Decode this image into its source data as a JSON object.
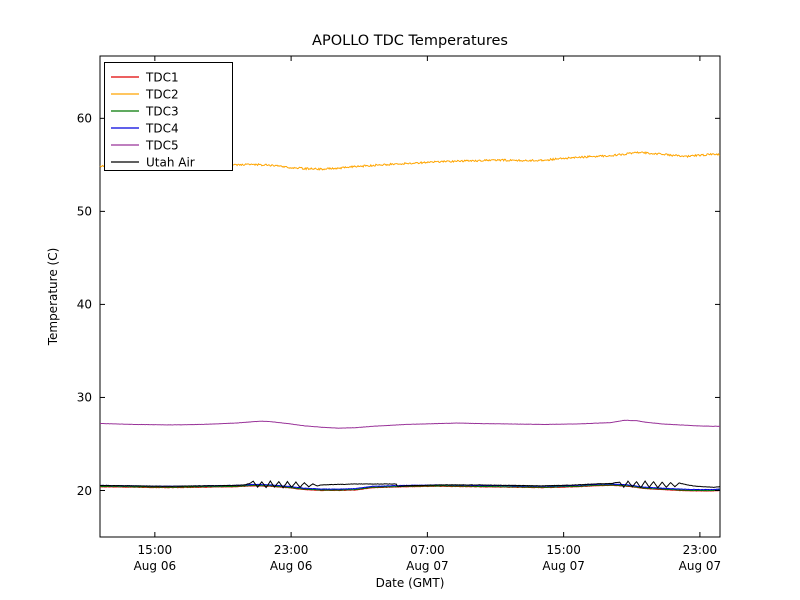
{
  "chart_data": {
    "type": "line",
    "title": "APOLLO TDC Temperatures",
    "xlabel": "Date (GMT)",
    "ylabel": "Temperature (C)",
    "ylim": [
      15,
      66.7
    ],
    "xlim_hours": [
      0,
      36.4
    ],
    "grid": false,
    "legend_position": "upper-left",
    "yticks": [
      20,
      30,
      40,
      50,
      60
    ],
    "xticks": [
      {
        "h": 3.22,
        "time": "15:00",
        "date": "Aug 06"
      },
      {
        "h": 11.22,
        "time": "23:00",
        "date": "Aug 06"
      },
      {
        "h": 19.22,
        "time": "07:00",
        "date": "Aug 07"
      },
      {
        "h": 27.22,
        "time": "15:00",
        "date": "Aug 07"
      },
      {
        "h": 35.22,
        "time": "23:00",
        "date": "Aug 07"
      }
    ],
    "series": [
      {
        "name": "TDC1",
        "color": "#e10000",
        "noise": 0.02,
        "points": [
          [
            0,
            20.4
          ],
          [
            2,
            20.35
          ],
          [
            4,
            20.3
          ],
          [
            6,
            20.35
          ],
          [
            8,
            20.4
          ],
          [
            9,
            20.5
          ],
          [
            10,
            20.45
          ],
          [
            11,
            20.3
          ],
          [
            12,
            20.1
          ],
          [
            13,
            20.0
          ],
          [
            14,
            20.0
          ],
          [
            15,
            20.05
          ],
          [
            16,
            20.3
          ],
          [
            18,
            20.4
          ],
          [
            20,
            20.45
          ],
          [
            22,
            20.4
          ],
          [
            24,
            20.35
          ],
          [
            26,
            20.3
          ],
          [
            28,
            20.4
          ],
          [
            29,
            20.5
          ],
          [
            30,
            20.55
          ],
          [
            31,
            20.45
          ],
          [
            32,
            20.2
          ],
          [
            33,
            20.1
          ],
          [
            34,
            20.0
          ],
          [
            35,
            19.95
          ],
          [
            36,
            19.95
          ],
          [
            36.4,
            20.0
          ]
        ]
      },
      {
        "name": "TDC2",
        "color": "#ffa500",
        "noise": 0.1,
        "points": [
          [
            0,
            54.9
          ],
          [
            1,
            54.85
          ],
          [
            2,
            54.8
          ],
          [
            3,
            54.75
          ],
          [
            4,
            54.8
          ],
          [
            5,
            54.85
          ],
          [
            6,
            54.9
          ],
          [
            7,
            54.95
          ],
          [
            8,
            55.0
          ],
          [
            9,
            55.05
          ],
          [
            10,
            54.95
          ],
          [
            11,
            54.75
          ],
          [
            12,
            54.6
          ],
          [
            13,
            54.55
          ],
          [
            14,
            54.65
          ],
          [
            15,
            54.8
          ],
          [
            16,
            54.95
          ],
          [
            17,
            55.05
          ],
          [
            18,
            55.15
          ],
          [
            19,
            55.25
          ],
          [
            20,
            55.35
          ],
          [
            21,
            55.4
          ],
          [
            22,
            55.45
          ],
          [
            23,
            55.5
          ],
          [
            24,
            55.5
          ],
          [
            25,
            55.45
          ],
          [
            26,
            55.5
          ],
          [
            27,
            55.65
          ],
          [
            28,
            55.8
          ],
          [
            29,
            55.9
          ],
          [
            30,
            56.0
          ],
          [
            31,
            56.2
          ],
          [
            31.5,
            56.3
          ],
          [
            32,
            56.3
          ],
          [
            33,
            56.15
          ],
          [
            34,
            55.95
          ],
          [
            34.5,
            55.9
          ],
          [
            35,
            56.0
          ],
          [
            36,
            56.15
          ],
          [
            36.4,
            56.1
          ]
        ]
      },
      {
        "name": "TDC3",
        "color": "#007700",
        "noise": 0.02,
        "points": [
          [
            0,
            20.45
          ],
          [
            2,
            20.4
          ],
          [
            4,
            20.35
          ],
          [
            6,
            20.4
          ],
          [
            8,
            20.45
          ],
          [
            9,
            20.55
          ],
          [
            10,
            20.5
          ],
          [
            11,
            20.35
          ],
          [
            12,
            20.15
          ],
          [
            13,
            20.05
          ],
          [
            14,
            20.05
          ],
          [
            15,
            20.1
          ],
          [
            16,
            20.35
          ],
          [
            18,
            20.45
          ],
          [
            20,
            20.5
          ],
          [
            22,
            20.45
          ],
          [
            24,
            20.4
          ],
          [
            26,
            20.35
          ],
          [
            28,
            20.45
          ],
          [
            29,
            20.55
          ],
          [
            30,
            20.6
          ],
          [
            31,
            20.5
          ],
          [
            32,
            20.25
          ],
          [
            33,
            20.15
          ],
          [
            34,
            20.05
          ],
          [
            35,
            20.0
          ],
          [
            36,
            20.0
          ],
          [
            36.4,
            20.05
          ]
        ]
      },
      {
        "name": "TDC4",
        "color": "#0000dd",
        "noise": 0.02,
        "points": [
          [
            0,
            20.55
          ],
          [
            2,
            20.5
          ],
          [
            4,
            20.45
          ],
          [
            6,
            20.5
          ],
          [
            8,
            20.55
          ],
          [
            9,
            20.65
          ],
          [
            10,
            20.6
          ],
          [
            11,
            20.45
          ],
          [
            12,
            20.25
          ],
          [
            13,
            20.15
          ],
          [
            14,
            20.15
          ],
          [
            15,
            20.2
          ],
          [
            16,
            20.45
          ],
          [
            18,
            20.55
          ],
          [
            20,
            20.6
          ],
          [
            22,
            20.55
          ],
          [
            24,
            20.5
          ],
          [
            26,
            20.45
          ],
          [
            28,
            20.55
          ],
          [
            29,
            20.65
          ],
          [
            30,
            20.7
          ],
          [
            31,
            20.6
          ],
          [
            32,
            20.35
          ],
          [
            33,
            20.25
          ],
          [
            34,
            20.15
          ],
          [
            35,
            20.1
          ],
          [
            36,
            20.1
          ],
          [
            36.4,
            20.15
          ]
        ]
      },
      {
        "name": "TDC5",
        "color": "#993399",
        "noise": 0.012,
        "points": [
          [
            0,
            27.2
          ],
          [
            2,
            27.1
          ],
          [
            4,
            27.05
          ],
          [
            6,
            27.1
          ],
          [
            8,
            27.25
          ],
          [
            9,
            27.4
          ],
          [
            9.5,
            27.45
          ],
          [
            10,
            27.4
          ],
          [
            11,
            27.2
          ],
          [
            12,
            26.95
          ],
          [
            13,
            26.8
          ],
          [
            14,
            26.7
          ],
          [
            15,
            26.75
          ],
          [
            16,
            26.9
          ],
          [
            18,
            27.1
          ],
          [
            20,
            27.2
          ],
          [
            21,
            27.25
          ],
          [
            22,
            27.2
          ],
          [
            24,
            27.15
          ],
          [
            26,
            27.1
          ],
          [
            28,
            27.15
          ],
          [
            30,
            27.3
          ],
          [
            30.8,
            27.55
          ],
          [
            31.5,
            27.5
          ],
          [
            32,
            27.35
          ],
          [
            33,
            27.15
          ],
          [
            34,
            27.05
          ],
          [
            35,
            26.95
          ],
          [
            36,
            26.9
          ],
          [
            36.4,
            26.9
          ]
        ]
      },
      {
        "name": "Utah Air",
        "color": "#000000",
        "noise": 0.02,
        "points": [
          [
            0,
            20.55
          ],
          [
            2,
            20.5
          ],
          [
            4,
            20.45
          ],
          [
            6,
            20.5
          ],
          [
            8,
            20.55
          ],
          [
            8.5,
            20.6
          ],
          [
            8.8,
            20.75
          ],
          [
            9.0,
            21.0
          ],
          [
            9.25,
            20.35
          ],
          [
            9.5,
            20.95
          ],
          [
            9.75,
            20.3
          ],
          [
            10,
            21.0
          ],
          [
            10.25,
            20.35
          ],
          [
            10.5,
            20.95
          ],
          [
            10.75,
            20.3
          ],
          [
            11,
            20.95
          ],
          [
            11.25,
            20.35
          ],
          [
            11.5,
            20.9
          ],
          [
            11.75,
            20.35
          ],
          [
            12,
            20.85
          ],
          [
            12.25,
            20.4
          ],
          [
            12.5,
            20.7
          ],
          [
            12.75,
            20.5
          ],
          [
            13,
            20.6
          ],
          [
            14,
            20.65
          ],
          [
            15,
            20.7
          ],
          [
            16,
            20.7
          ],
          [
            17,
            20.7
          ],
          [
            17.4,
            20.7
          ],
          [
            17.45,
            20.45
          ],
          [
            18,
            20.5
          ],
          [
            19,
            20.55
          ],
          [
            20,
            20.6
          ],
          [
            22,
            20.6
          ],
          [
            24,
            20.55
          ],
          [
            26,
            20.5
          ],
          [
            28,
            20.6
          ],
          [
            29,
            20.7
          ],
          [
            30,
            20.75
          ],
          [
            30.5,
            20.9
          ],
          [
            30.75,
            20.35
          ],
          [
            31,
            21.0
          ],
          [
            31.25,
            20.4
          ],
          [
            31.5,
            20.95
          ],
          [
            31.75,
            20.3
          ],
          [
            32,
            21.0
          ],
          [
            32.25,
            20.35
          ],
          [
            32.5,
            20.95
          ],
          [
            32.75,
            20.3
          ],
          [
            33,
            20.9
          ],
          [
            33.25,
            20.35
          ],
          [
            33.5,
            20.85
          ],
          [
            33.75,
            20.4
          ],
          [
            34,
            20.8
          ],
          [
            34.5,
            20.6
          ],
          [
            35,
            20.45
          ],
          [
            36,
            20.35
          ],
          [
            36.4,
            20.4
          ]
        ]
      }
    ]
  }
}
